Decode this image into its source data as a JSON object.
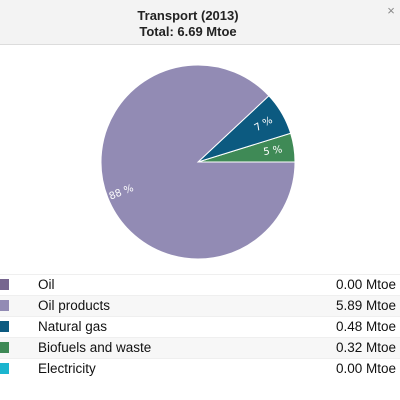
{
  "header": {
    "title": "Transport (2013)",
    "subtitle": "Total: 6.69 Mtoe",
    "close_symbol": "×"
  },
  "chart_data": {
    "type": "pie",
    "title": "Transport (2013)",
    "subtitle": "Total: 6.69 Mtoe",
    "unit": "Mtoe",
    "slices": [
      {
        "name": "Oil",
        "value": 0.0,
        "value_label": "0.00 Mtoe",
        "pct_label": "",
        "color": "#77668f"
      },
      {
        "name": "Oil products",
        "value": 5.89,
        "value_label": "5.89 Mtoe",
        "pct_label": "88 %",
        "color": "#928bb4"
      },
      {
        "name": "Natural gas",
        "value": 0.48,
        "value_label": "0.48 Mtoe",
        "pct_label": "7 %",
        "color": "#0c5a80"
      },
      {
        "name": "Biofuels and waste",
        "value": 0.32,
        "value_label": "0.32 Mtoe",
        "pct_label": "5 %",
        "color": "#3f8a56"
      },
      {
        "name": "Electricity",
        "value": 0.0,
        "value_label": "0.00 Mtoe",
        "pct_label": "",
        "color": "#1bb5cf"
      }
    ]
  }
}
